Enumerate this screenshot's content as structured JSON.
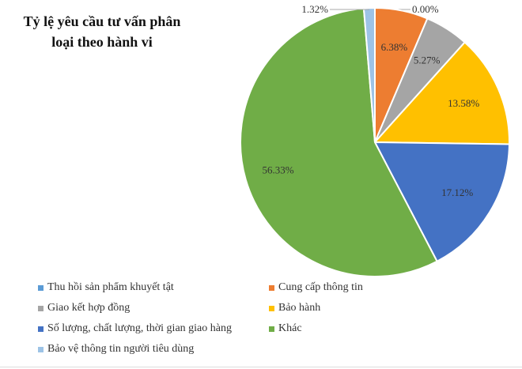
{
  "chart_data": {
    "type": "pie",
    "title": "Tỷ lệ yêu cầu tư vấn phân loại theo hành vi",
    "start": "top",
    "direction": "clockwise",
    "slices": [
      {
        "label": "Thu hồi sản phẩm khuyết tật",
        "value": 0.0,
        "display": "0.00%",
        "color": "#5B9BD5"
      },
      {
        "label": "Cung cấp thông tin",
        "value": 6.38,
        "display": "6.38%",
        "color": "#ED7D31"
      },
      {
        "label": "Giao kết hợp đồng",
        "value": 5.27,
        "display": "5.27%",
        "color": "#A5A5A5"
      },
      {
        "label": "Bảo hành",
        "value": 13.58,
        "display": "13.58%",
        "color": "#FFC000"
      },
      {
        "label": "Số lượng, chất lượng, thời gian giao hàng",
        "value": 17.12,
        "display": "17.12%",
        "color": "#4472C4"
      },
      {
        "label": "Khác",
        "value": 56.33,
        "display": "56.33%",
        "color": "#70AD47"
      },
      {
        "label": "Bảo vệ thông tin người tiêu dùng",
        "value": 1.32,
        "display": "1.32%",
        "color": "#9DC3E6"
      }
    ],
    "legend_position": "bottom"
  }
}
